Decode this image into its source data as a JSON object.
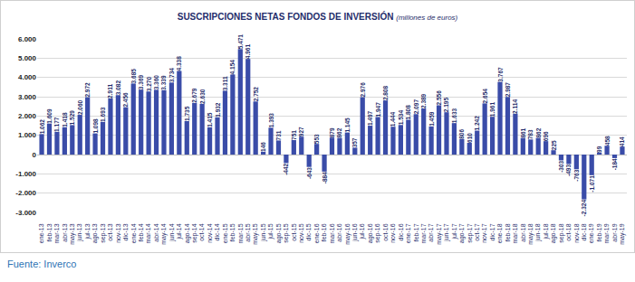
{
  "chart_data": {
    "type": "bar",
    "title": "SUSCRIPCIONES NETAS FONDOS DE INVERSIÓN",
    "subtitle": "(millones de euros)",
    "source": "Fuente: Inverco",
    "categories": [
      "ene-13",
      "feb-13",
      "mar-13",
      "abr-13",
      "may-13",
      "jun-13",
      "jul-13",
      "ago-13",
      "sep-13",
      "oct-13",
      "nov-13",
      "dic-13",
      "ene-14",
      "feb-14",
      "mar-14",
      "abr-14",
      "may-14",
      "jun-14",
      "jul-14",
      "ago-14",
      "sep-14",
      "oct-14",
      "nov-14",
      "dic-14",
      "ene-15",
      "feb-15",
      "mar-15",
      "abr-15",
      "may-15",
      "jun-15",
      "jul-15",
      "ago-15",
      "sep-15",
      "oct-15",
      "nov-15",
      "dic-15",
      "ene-16",
      "feb-16",
      "mar-16",
      "abr-16",
      "may-16",
      "jun-16",
      "jul-16",
      "ago-16",
      "sep-16",
      "oct-16",
      "nov-16",
      "dic-16",
      "ene-17",
      "feb-17",
      "mar-17",
      "abr-17",
      "may-17",
      "jun-17",
      "jul-17",
      "ago-17",
      "sep-17",
      "oct-17",
      "nov-17",
      "dic-17",
      "ene-18",
      "feb-18",
      "mar-18",
      "abr-18",
      "may-18",
      "jun-18",
      "jul-18",
      "ago-18",
      "sep-18",
      "oct-18",
      "nov-18",
      "dic-18",
      "ene-19",
      "feb-19",
      "mar-19",
      "abr-19",
      "may-19"
    ],
    "values": [
      1062,
      1609,
      1177,
      1418,
      1529,
      2060,
      2972,
      1098,
      1693,
      2911,
      3082,
      2456,
      3685,
      3369,
      3270,
      3360,
      3339,
      3734,
      4338,
      1735,
      2679,
      2630,
      1415,
      1932,
      3311,
      4154,
      5471,
      4961,
      2752,
      146,
      1393,
      731,
      -442,
      751,
      927,
      -643,
      553,
      -884,
      879,
      862,
      1145,
      357,
      2976,
      1497,
      1947,
      2808,
      1444,
      1534,
      1808,
      2097,
      2389,
      1459,
      2556,
      2195,
      1633,
      806,
      610,
      1242,
      2654,
      1961,
      3767,
      2987,
      2114,
      861,
      783,
      862,
      696,
      225,
      -303,
      -493,
      -763,
      -2324,
      -1071,
      99,
      458,
      -184,
      414
    ],
    "value_labels": [
      "1.062",
      "1.609",
      "1.177",
      "1.418",
      "1.529",
      "2.060",
      "2.972",
      "1.098",
      "1.693",
      "2.911",
      "3.082",
      "2.456",
      "3.685",
      "3.369",
      "3.270",
      "3.360",
      "3.339",
      "3.734",
      "4.338",
      "1.735",
      "2.679",
      "2.630",
      "1.415",
      "1.932",
      "3.311",
      "4.154",
      "5.471",
      "4.961",
      "2.752",
      "146",
      "1.393",
      "731",
      "-442",
      "751",
      "927",
      "-643",
      "553",
      "-884",
      "879",
      "862",
      "1.145",
      "357",
      "2.976",
      "1.497",
      "1.947",
      "2.808",
      "1.444",
      "1.534",
      "1.808",
      "2.097",
      "2.389",
      "1.459",
      "2.556",
      "2.195",
      "1.633",
      "806",
      "610",
      "1.242",
      "2.654",
      "1.961",
      "3.767",
      "2.987",
      "2.114",
      "861",
      "783",
      "862",
      "696",
      "225",
      "-303",
      "-493",
      "-763",
      "-2.324",
      "-1.071",
      "99",
      "458",
      "-184",
      "414"
    ],
    "color": "#3a4ca8",
    "ylim": [
      -3000,
      6000
    ],
    "yticks": [
      {
        "value": -3000,
        "label": "-3.000"
      },
      {
        "value": -2000,
        "label": "-2.000"
      },
      {
        "value": -1000,
        "label": "-1.000"
      },
      0,
      {
        "value": 1000,
        "label": "1.000"
      },
      {
        "value": 2000,
        "label": "2.000"
      },
      {
        "value": 3000,
        "label": "3.000"
      },
      {
        "value": 4000,
        "label": "4.000"
      },
      {
        "value": 5000,
        "label": "5.000"
      },
      {
        "value": 6000,
        "label": "6.000"
      }
    ],
    "grid": true,
    "data_labels": true
  }
}
